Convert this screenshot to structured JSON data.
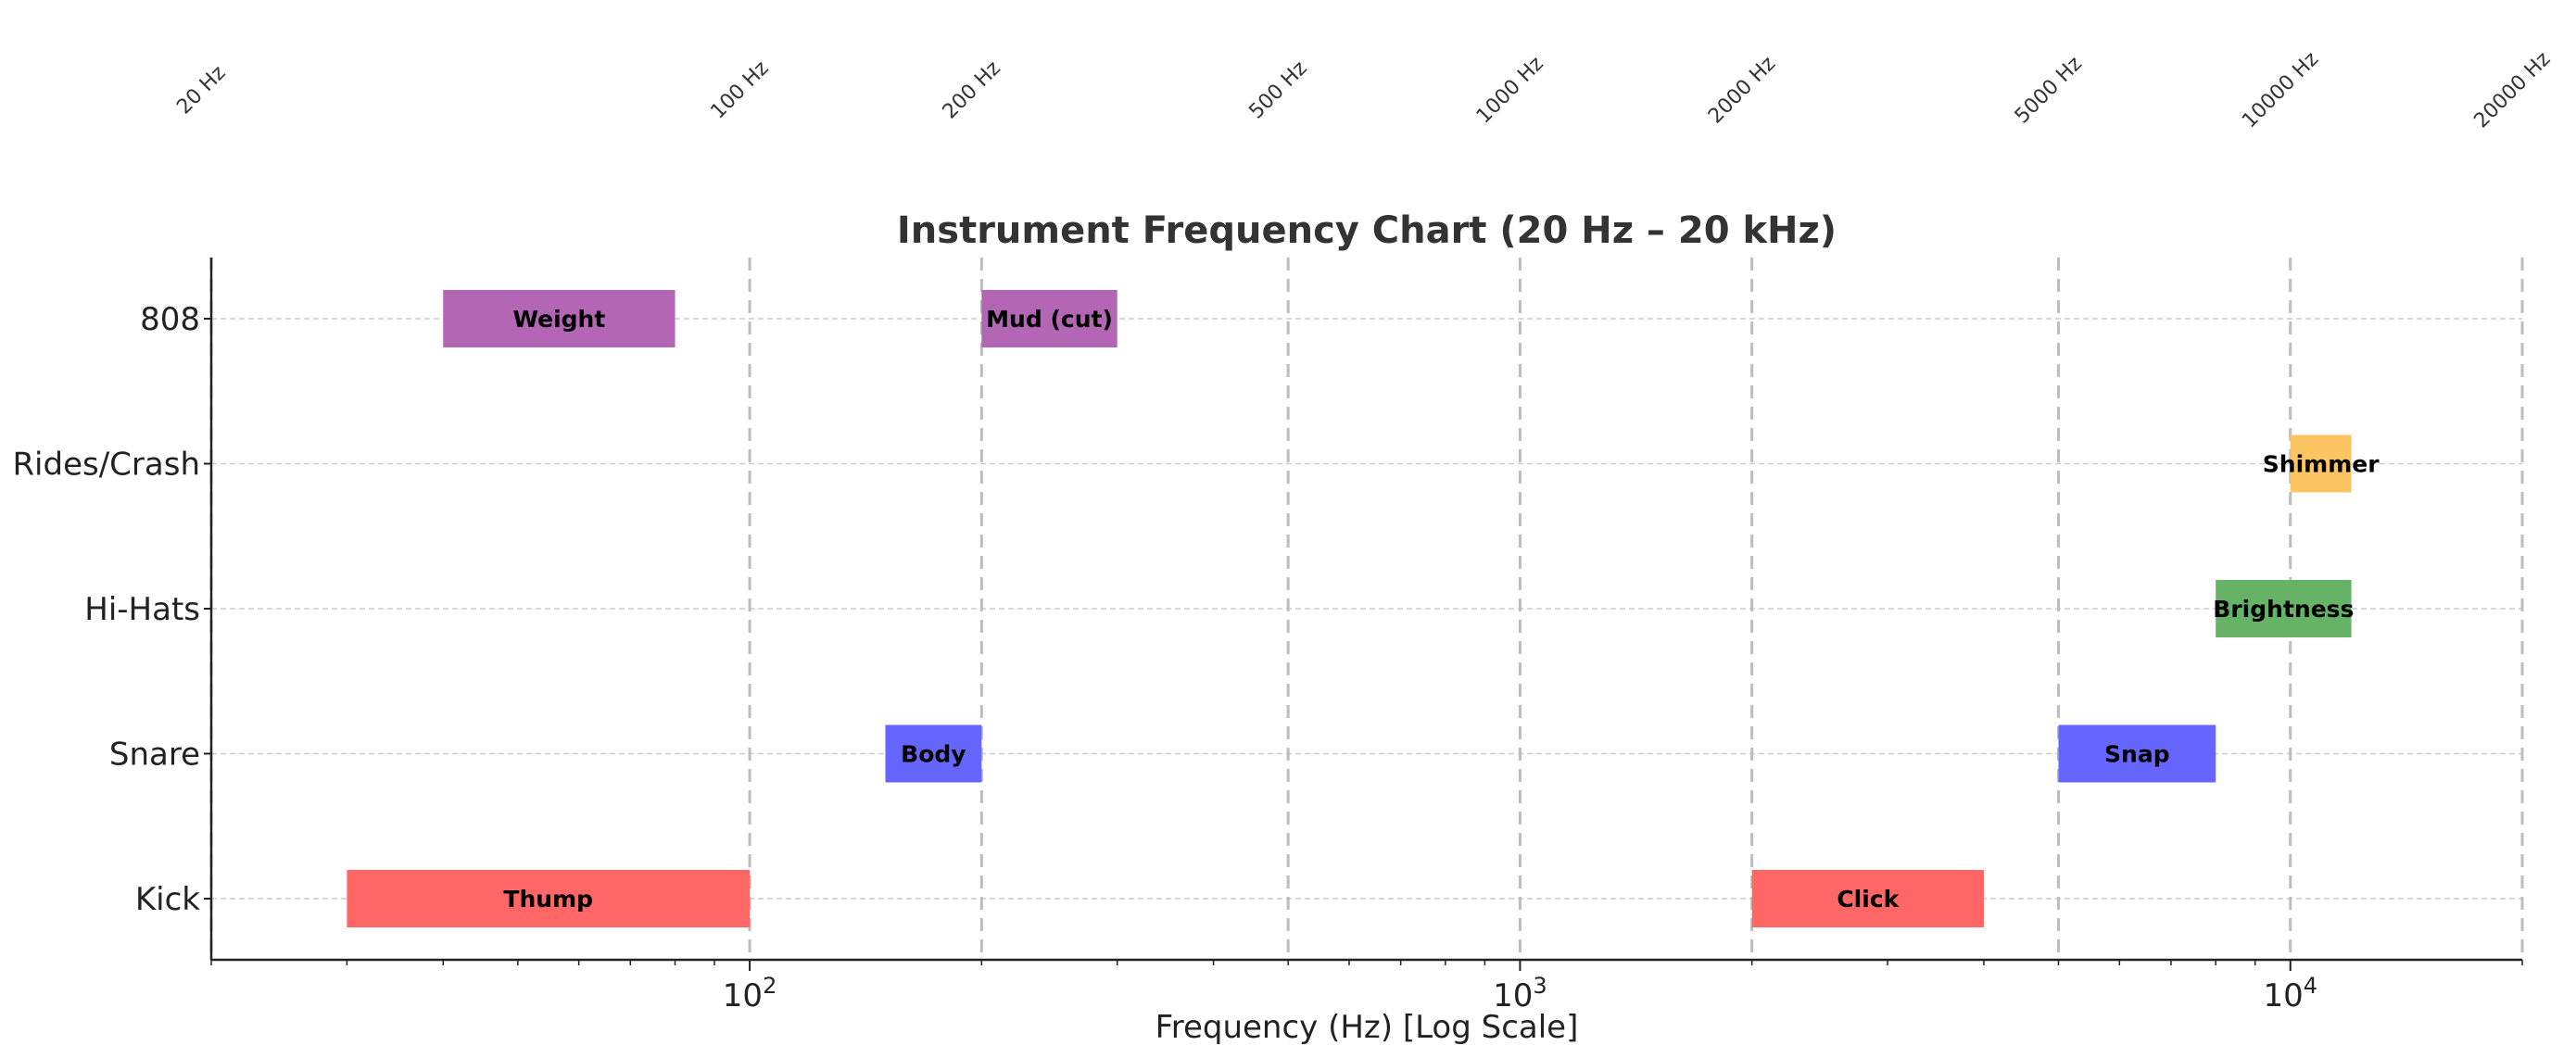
{
  "chart_data": {
    "type": "bar",
    "orientation": "horizontal-range",
    "title": "Instrument Frequency Chart (20 Hz – 20 kHz)",
    "xlabel": "Frequency (Hz) [Log Scale]",
    "ylabel": "",
    "x_scale": "log",
    "xlim": [
      20,
      20000
    ],
    "x_major_ticks": [
      {
        "value": 100,
        "label": "10",
        "exp": "2"
      },
      {
        "value": 1000,
        "label": "10",
        "exp": "3"
      },
      {
        "value": 10000,
        "label": "10",
        "exp": "4"
      }
    ],
    "reference_lines": [
      {
        "value": 20,
        "label": "20 Hz"
      },
      {
        "value": 100,
        "label": "100 Hz"
      },
      {
        "value": 200,
        "label": "200 Hz"
      },
      {
        "value": 500,
        "label": "500 Hz"
      },
      {
        "value": 1000,
        "label": "1000 Hz"
      },
      {
        "value": 2000,
        "label": "2000 Hz"
      },
      {
        "value": 5000,
        "label": "5000 Hz"
      },
      {
        "value": 10000,
        "label": "10000 Hz"
      },
      {
        "value": 20000,
        "label": "20000 Hz"
      }
    ],
    "categories": [
      "Kick",
      "Snare",
      "Hi-Hats",
      "Rides/Crash",
      "808"
    ],
    "grid": true,
    "bars": [
      {
        "instrument": "808",
        "label": "Weight",
        "start": 40,
        "end": 80,
        "color": "#b366b3"
      },
      {
        "instrument": "808",
        "label": "Mud (cut)",
        "start": 200,
        "end": 300,
        "color": "#b366b3"
      },
      {
        "instrument": "Rides/Crash",
        "label": "Shimmer",
        "start": 10000,
        "end": 12000,
        "color": "#fcc562"
      },
      {
        "instrument": "Hi-Hats",
        "label": "Brightness",
        "start": 8000,
        "end": 12000,
        "color": "#66b266"
      },
      {
        "instrument": "Snare",
        "label": "Body",
        "start": 150,
        "end": 200,
        "color": "#6666ff"
      },
      {
        "instrument": "Snare",
        "label": "Snap",
        "start": 5000,
        "end": 8000,
        "color": "#6666ff"
      },
      {
        "instrument": "Kick",
        "label": "Thump",
        "start": 30,
        "end": 100,
        "color": "#ff6666"
      },
      {
        "instrument": "Kick",
        "label": "Click",
        "start": 2000,
        "end": 4000,
        "color": "#ff6666"
      }
    ]
  }
}
